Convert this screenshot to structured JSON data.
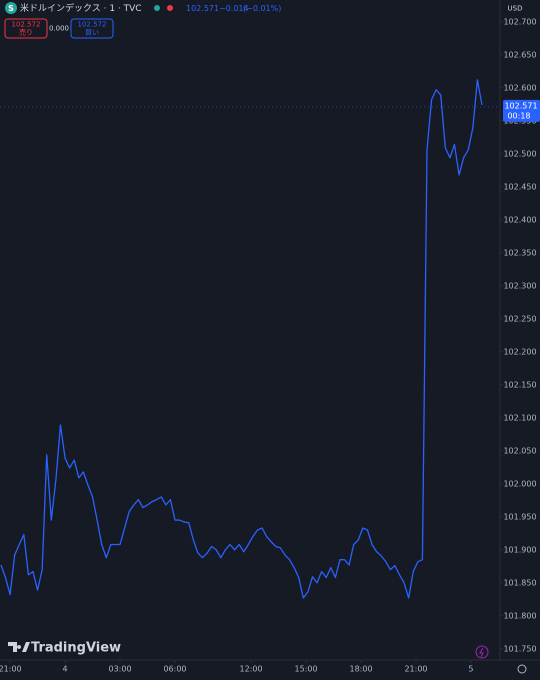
{
  "header": {
    "symbol_icon": "S",
    "symbol": "米ドルインデックス · 1 · TVC",
    "last": "102.571",
    "change": "−0.014",
    "change_pct": "(−0.01%)",
    "sell_price": "102.572",
    "sell_label": "売り",
    "spread": "0.000",
    "buy_price": "102.572",
    "buy_label": "買い",
    "currency": "USD"
  },
  "brand": "TradingView",
  "chart_data": {
    "type": "line",
    "color": "#2962ff",
    "grid": false,
    "xlim": [
      -33,
      1604
    ],
    "ylim": [
      101.733,
      102.733
    ],
    "xticks": [
      {
        "value": 0,
        "label": "21:00"
      },
      {
        "value": 180,
        "label": "4"
      },
      {
        "value": 360,
        "label": "03:00"
      },
      {
        "value": 540,
        "label": "06:00"
      },
      {
        "value": 789,
        "label": "12:00"
      },
      {
        "value": 969,
        "label": "15:00"
      },
      {
        "value": 1149,
        "label": "18:00"
      },
      {
        "value": 1329,
        "label": "21:00"
      },
      {
        "value": 1509,
        "label": "5"
      }
    ],
    "yticks": [
      {
        "value": 101.75,
        "label": "101.750"
      },
      {
        "value": 101.8,
        "label": "101.800"
      },
      {
        "value": 101.85,
        "label": "101.850"
      },
      {
        "value": 101.9,
        "label": "101.900"
      },
      {
        "value": 101.95,
        "label": "101.950"
      },
      {
        "value": 102.0,
        "label": "102.000"
      },
      {
        "value": 102.05,
        "label": "102.050"
      },
      {
        "value": 102.1,
        "label": "102.100"
      },
      {
        "value": 102.15,
        "label": "102.150"
      },
      {
        "value": 102.2,
        "label": "102.200"
      },
      {
        "value": 102.25,
        "label": "102.250"
      },
      {
        "value": 102.3,
        "label": "102.300"
      },
      {
        "value": 102.35,
        "label": "102.350"
      },
      {
        "value": 102.4,
        "label": "102.400"
      },
      {
        "value": 102.45,
        "label": "102.450"
      },
      {
        "value": 102.5,
        "label": "102.500"
      },
      {
        "value": 102.55,
        "label": "102.550"
      },
      {
        "value": 102.6,
        "label": "102.600"
      },
      {
        "value": 102.65,
        "label": "102.650"
      },
      {
        "value": 102.7,
        "label": "102.700"
      }
    ],
    "last_price": 102.571,
    "countdown": "00:18",
    "x": [
      -30,
      -15,
      0,
      15,
      30,
      45,
      60,
      75,
      90,
      105,
      120,
      135,
      150,
      165,
      180,
      195,
      210,
      225,
      240,
      255,
      270,
      285,
      300,
      315,
      330,
      345,
      360,
      375,
      390,
      405,
      420,
      435,
      450,
      465,
      480,
      495,
      510,
      525,
      540,
      555,
      570,
      585,
      600,
      615,
      630,
      645,
      660,
      675,
      690,
      705,
      720,
      735,
      750,
      765,
      780,
      795,
      810,
      825,
      840,
      855,
      870,
      885,
      900,
      915,
      930,
      945,
      960,
      975,
      990,
      1005,
      1020,
      1035,
      1050,
      1065,
      1080,
      1095,
      1110,
      1125,
      1140,
      1155,
      1170,
      1185,
      1200,
      1215,
      1230,
      1245,
      1260,
      1275,
      1290,
      1305,
      1320,
      1335,
      1350,
      1365,
      1380,
      1395,
      1410,
      1425,
      1440,
      1455,
      1470,
      1485,
      1500,
      1515,
      1530,
      1545
    ],
    "values": [
      101.877,
      101.858,
      101.832,
      101.892,
      101.908,
      101.923,
      101.862,
      101.867,
      101.839,
      101.87,
      102.044,
      101.945,
      102.006,
      102.089,
      102.039,
      102.024,
      102.036,
      102.009,
      102.018,
      101.998,
      101.98,
      101.945,
      101.908,
      101.888,
      101.908,
      101.908,
      101.908,
      101.933,
      101.958,
      101.968,
      101.976,
      101.964,
      101.968,
      101.973,
      101.976,
      101.98,
      101.968,
      101.976,
      101.945,
      101.945,
      101.942,
      101.941,
      101.915,
      101.895,
      101.888,
      101.895,
      101.905,
      101.9,
      101.888,
      101.9,
      101.908,
      101.9,
      101.908,
      101.897,
      101.908,
      101.92,
      101.93,
      101.933,
      101.92,
      101.912,
      101.905,
      101.903,
      101.892,
      101.885,
      101.873,
      101.858,
      101.827,
      101.836,
      101.859,
      101.85,
      101.867,
      101.858,
      101.873,
      101.858,
      101.885,
      101.885,
      101.877,
      101.908,
      101.915,
      101.933,
      101.93,
      101.908,
      101.897,
      101.891,
      101.882,
      101.87,
      101.876,
      101.862,
      101.85,
      101.827,
      101.867,
      101.882,
      101.885,
      102.506,
      102.582,
      102.597,
      102.589,
      102.509,
      102.494,
      102.514,
      102.468,
      102.494,
      102.506,
      102.539,
      102.612,
      102.574
    ]
  }
}
